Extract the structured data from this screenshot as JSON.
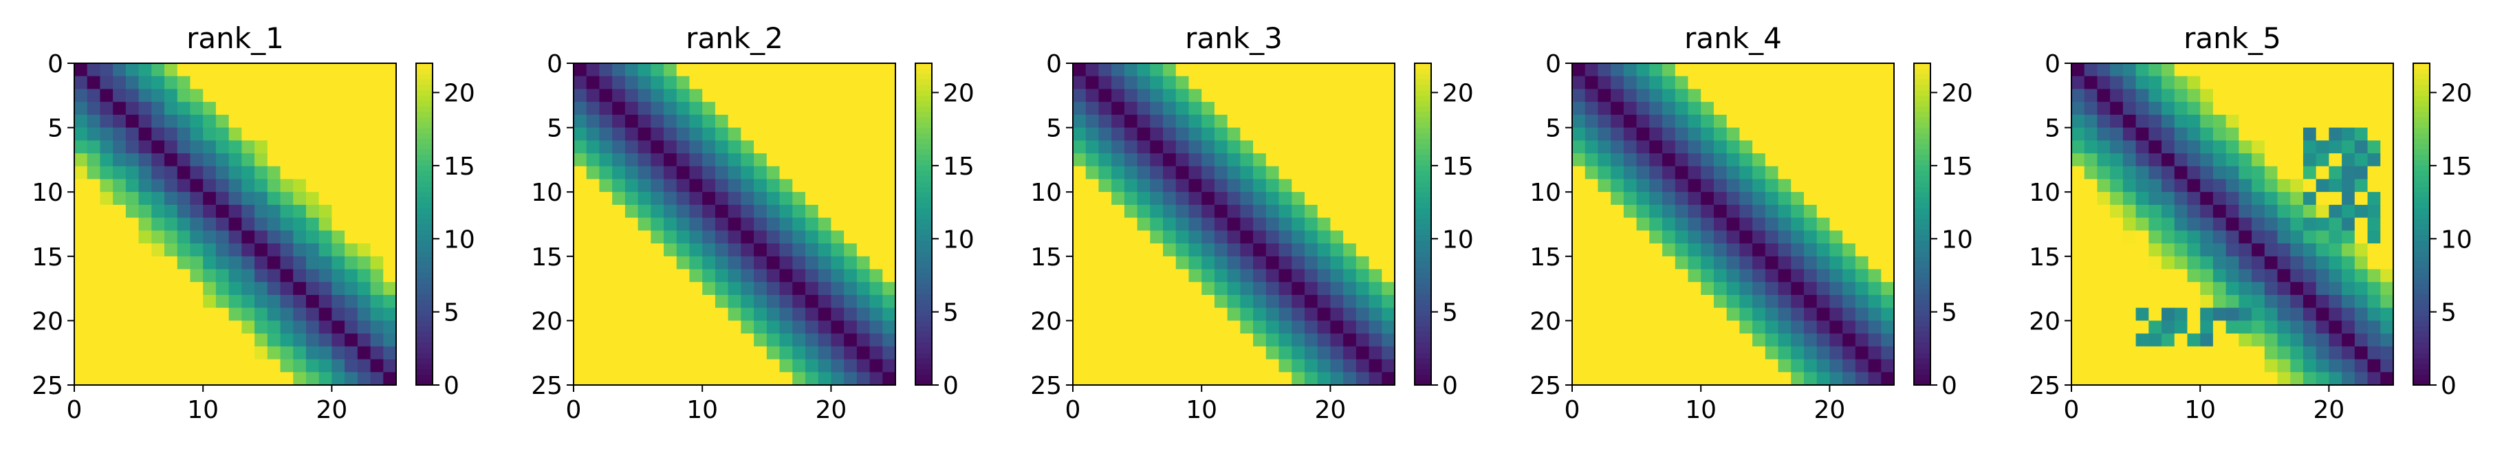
{
  "chart_data": [
    {
      "type": "heatmap",
      "title": "rank_1",
      "cell_count": 25,
      "xlim": [
        0,
        25
      ],
      "ylim": [
        25,
        0
      ],
      "xticks": [
        0,
        10,
        20
      ],
      "yticks": [
        0,
        5,
        10,
        15,
        20,
        25
      ],
      "colorbar": {
        "min": 0,
        "max": 22,
        "ticks": [
          0,
          5,
          10,
          15,
          20
        ],
        "colormap": "viridis"
      },
      "band_halfwidth": 7,
      "irregular": 1
    },
    {
      "type": "heatmap",
      "title": "rank_2",
      "cell_count": 25,
      "xlim": [
        0,
        25
      ],
      "ylim": [
        25,
        0
      ],
      "xticks": [
        0,
        10,
        20
      ],
      "yticks": [
        0,
        5,
        10,
        15,
        20,
        25
      ],
      "colorbar": {
        "min": 0,
        "max": 22,
        "ticks": [
          0,
          5,
          10,
          15,
          20
        ],
        "colormap": "viridis"
      },
      "band_halfwidth": 7,
      "irregular": 0
    },
    {
      "type": "heatmap",
      "title": "rank_3",
      "cell_count": 25,
      "xlim": [
        0,
        25
      ],
      "ylim": [
        25,
        0
      ],
      "xticks": [
        0,
        10,
        20
      ],
      "yticks": [
        0,
        5,
        10,
        15,
        20,
        25
      ],
      "colorbar": {
        "min": 0,
        "max": 22,
        "ticks": [
          0,
          5,
          10,
          15,
          20
        ],
        "colormap": "viridis"
      },
      "band_halfwidth": 7,
      "irregular": 0
    },
    {
      "type": "heatmap",
      "title": "rank_4",
      "cell_count": 25,
      "xlim": [
        0,
        25
      ],
      "ylim": [
        25,
        0
      ],
      "xticks": [
        0,
        10,
        20
      ],
      "yticks": [
        0,
        5,
        10,
        15,
        20,
        25
      ],
      "colorbar": {
        "min": 0,
        "max": 22,
        "ticks": [
          0,
          5,
          10,
          15,
          20
        ],
        "colormap": "viridis"
      },
      "band_halfwidth": 7,
      "irregular": 0
    },
    {
      "type": "heatmap",
      "title": "rank_5",
      "cell_count": 25,
      "xlim": [
        0,
        25
      ],
      "ylim": [
        25,
        0
      ],
      "xticks": [
        0,
        10,
        20
      ],
      "yticks": [
        0,
        5,
        10,
        15,
        20,
        25
      ],
      "colorbar": {
        "min": 0,
        "max": 22,
        "ticks": [
          0,
          5,
          10,
          15,
          20
        ],
        "colormap": "viridis"
      },
      "band_halfwidth": 7,
      "irregular": 2
    }
  ]
}
